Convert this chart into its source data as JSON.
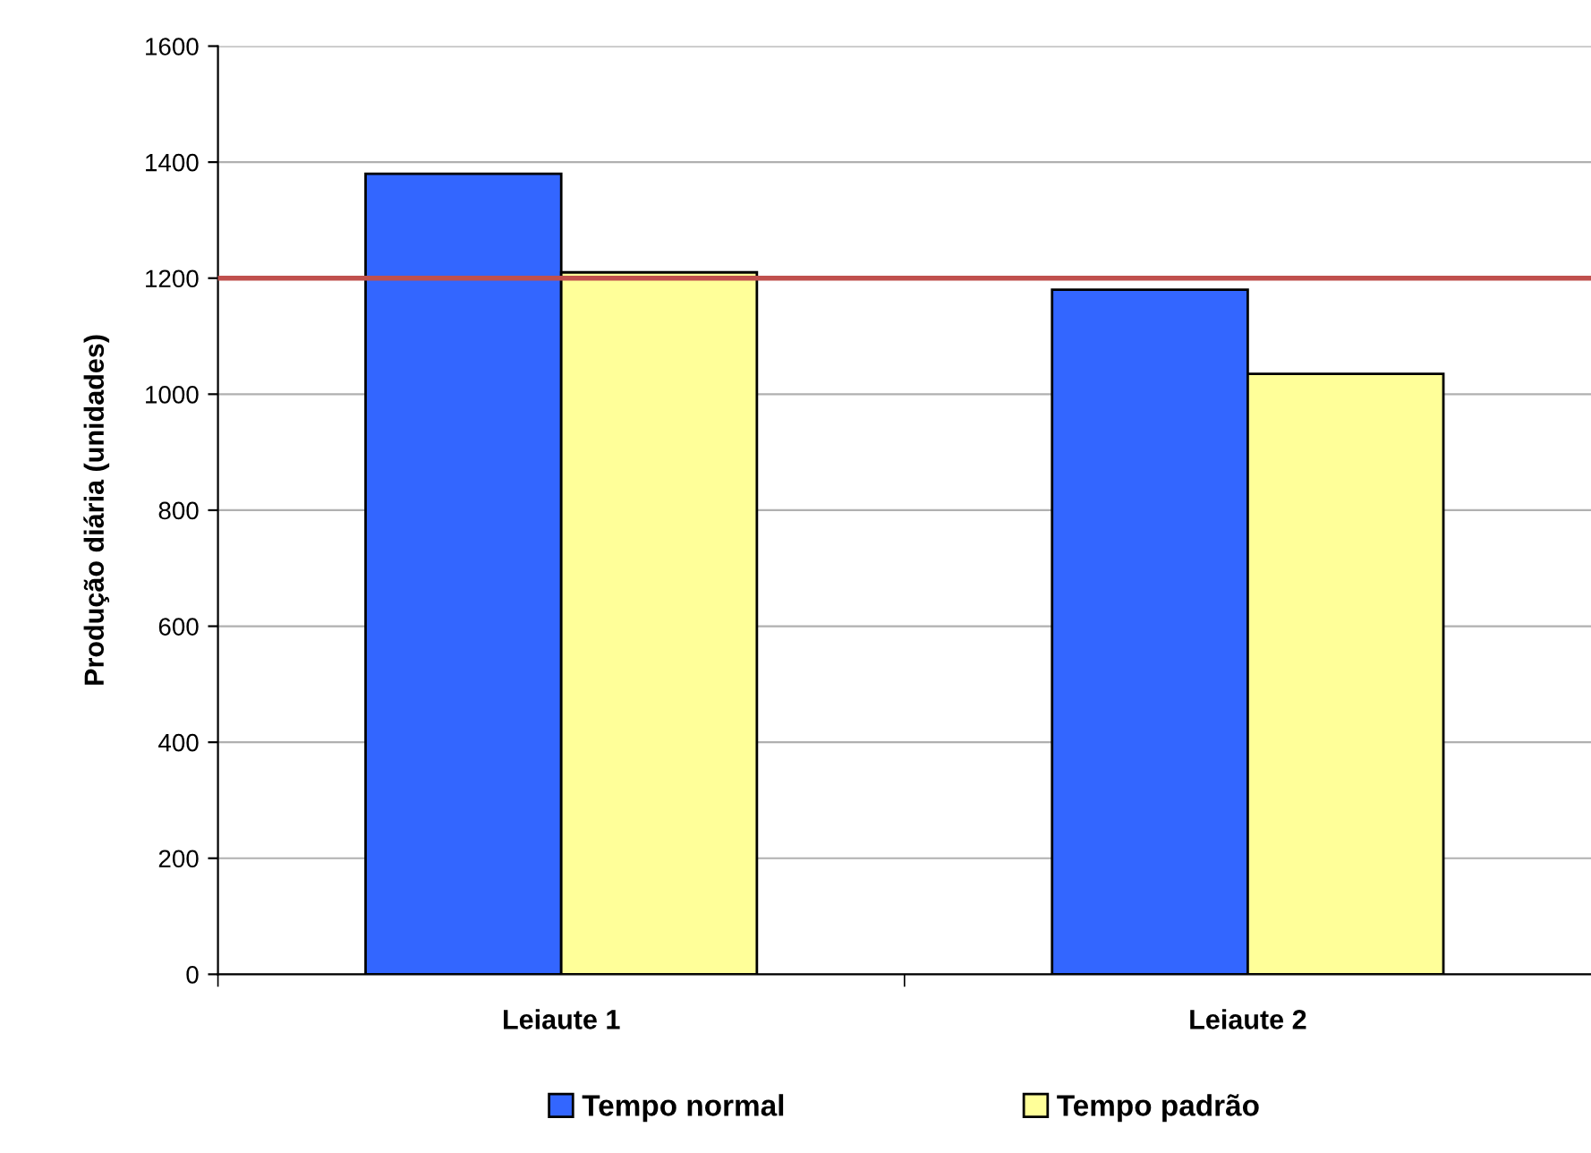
{
  "chart_data": {
    "type": "bar",
    "ylabel": "Produção diária (unidades)",
    "categories": [
      "Leiaute 1",
      "Leiaute 2"
    ],
    "series": [
      {
        "name": "Tempo normal",
        "color": "#3366ff",
        "values": [
          1380,
          1180
        ]
      },
      {
        "name": "Tempo padrão",
        "color": "#ffff99",
        "values": [
          1210,
          1035
        ]
      }
    ],
    "ylim": [
      0,
      1600
    ],
    "yticks": [
      0,
      200,
      400,
      600,
      800,
      1000,
      1200,
      1400,
      1600
    ],
    "grid": "y",
    "legend": "bottom",
    "ref_lines": [
      {
        "axis": "y",
        "value": 1200,
        "color": "#c0504d"
      }
    ]
  }
}
